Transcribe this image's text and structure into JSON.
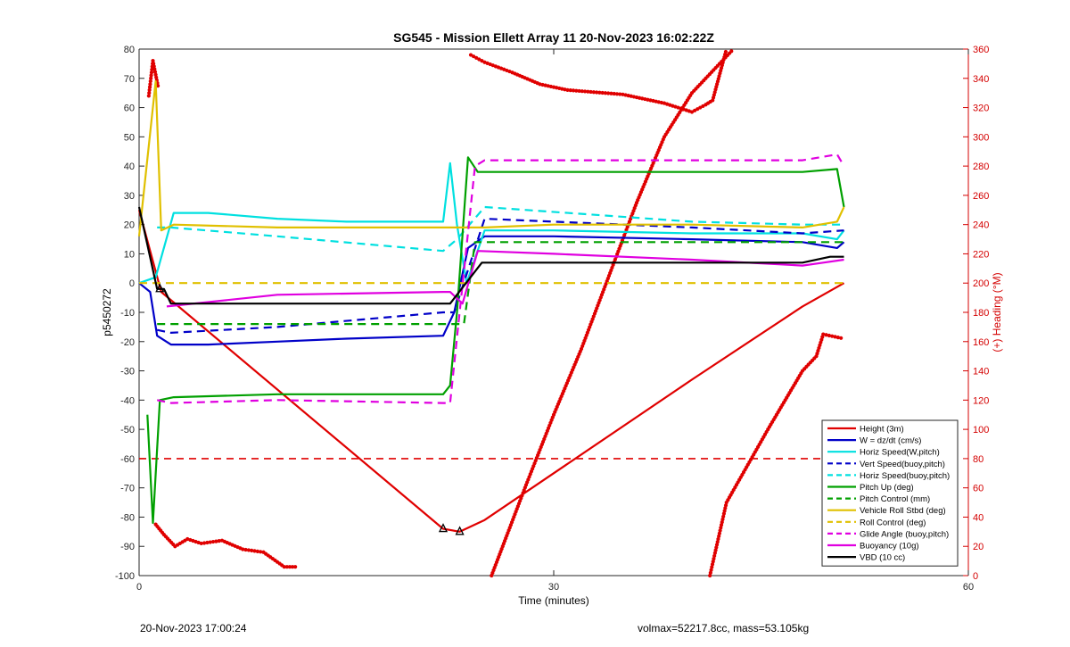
{
  "chart_data": {
    "type": "line",
    "title": "SG545 - Mission Ellett Array 11 20-Nov-2023 16:02:22Z",
    "xlabel": "Time (minutes)",
    "ylabel": "p5450272",
    "y2label": "(+) Heading (°M)",
    "xlim": [
      0,
      60
    ],
    "ylim": [
      -100,
      80
    ],
    "y2lim": [
      0,
      360
    ],
    "xticks": [
      0,
      30,
      60
    ],
    "yticks": [
      -100,
      -90,
      -80,
      -70,
      -60,
      -50,
      -40,
      -30,
      -20,
      -10,
      0,
      10,
      20,
      30,
      40,
      50,
      60,
      70,
      80
    ],
    "y2ticks": [
      0,
      20,
      40,
      60,
      80,
      100,
      120,
      140,
      160,
      180,
      200,
      220,
      240,
      260,
      280,
      300,
      320,
      340,
      360
    ],
    "grid": false,
    "legend_position": "bottom-right",
    "series": [
      {
        "name": "Height (3m)",
        "color": "#e00000",
        "style": "solid",
        "x": [
          0,
          1.6,
          22,
          23.2,
          25,
          40,
          48,
          51
        ],
        "y": [
          25,
          -3,
          -84,
          -85,
          -81,
          -33,
          -8,
          0
        ]
      },
      {
        "name": "W = dz/dt (cm/s)",
        "color": "#0000c8",
        "style": "solid",
        "x": [
          0,
          0.8,
          1.3,
          2.3,
          5,
          10,
          15,
          22,
          22.8,
          23.8,
          25,
          30,
          40,
          48,
          50.5,
          51
        ],
        "y": [
          0,
          -3,
          -18,
          -21,
          -21,
          -20,
          -19,
          -18,
          -10,
          12,
          16,
          16,
          15,
          14,
          12,
          14
        ]
      },
      {
        "name": "Horiz Speed(W,pitch)",
        "color": "#00e0e0",
        "style": "solid",
        "x": [
          0,
          1.2,
          2.5,
          5,
          10,
          15,
          22,
          22.5,
          23,
          23.7,
          25,
          30,
          40,
          48,
          50.5,
          51
        ],
        "y": [
          0,
          2,
          24,
          24,
          22,
          21,
          21,
          41,
          20,
          0,
          18,
          18,
          17,
          17,
          15,
          18
        ]
      },
      {
        "name": "Vert Speed(buoy,pitch)",
        "color": "#0000c8",
        "style": "dashed",
        "x": [
          1.3,
          2.3,
          10,
          22,
          22.8,
          25,
          30,
          40,
          48,
          51
        ],
        "y": [
          -16,
          -17,
          -15,
          -10,
          -10,
          22,
          21,
          19,
          17,
          18
        ]
      },
      {
        "name": "Horiz Speed(buoy,pitch)",
        "color": "#00e0e0",
        "style": "dashed",
        "x": [
          1.3,
          2.3,
          10,
          22,
          23,
          25,
          40,
          48,
          51
        ],
        "y": [
          19,
          19,
          16,
          11,
          15,
          26,
          21,
          20,
          20
        ]
      },
      {
        "name": "Pitch Up (deg)",
        "color": "#00a000",
        "style": "solid",
        "x": [
          0.6,
          1.0,
          1.5,
          2.5,
          10,
          22,
          22.5,
          23.0,
          23.8,
          24.5,
          30,
          40,
          48,
          50.5,
          51
        ],
        "y": [
          -45,
          -82,
          -40,
          -39,
          -38,
          -38,
          -35,
          -10,
          43,
          38,
          38,
          38,
          38,
          39,
          26
        ]
      },
      {
        "name": "Pitch Control (mm)",
        "color": "#00a000",
        "style": "dashed",
        "x": [
          1.3,
          2.3,
          22,
          23.5,
          24.3,
          51
        ],
        "y": [
          -14,
          -14,
          -14,
          -14,
          14,
          14
        ]
      },
      {
        "name": "Vehicle Roll Stbd (deg)",
        "color": "#e0c000",
        "style": "solid",
        "x": [
          0,
          1.2,
          1.6,
          2.5,
          10,
          22,
          25,
          30,
          40,
          48,
          50.5,
          51
        ],
        "y": [
          16,
          69,
          18,
          20,
          19,
          19,
          19,
          20,
          20,
          19,
          21,
          26
        ]
      },
      {
        "name": "Roll Control (deg)",
        "color": "#e0c000",
        "style": "dashed",
        "x": [
          0,
          51
        ],
        "y": [
          0,
          0
        ]
      },
      {
        "name": "Glide Angle (buoy,pitch)",
        "color": "#e000e0",
        "style": "dashed",
        "x": [
          1.3,
          2.3,
          10,
          22,
          22.5,
          24.3,
          25,
          40,
          48,
          50.5,
          51
        ],
        "y": [
          -40,
          -41,
          -40,
          -41,
          -41,
          40,
          42,
          42,
          42,
          44,
          40
        ]
      },
      {
        "name": "Buoyancy (10g)",
        "color": "#e000e0",
        "style": "solid",
        "x": [
          2,
          10,
          22,
          22.5,
          23.4,
          24.5,
          30,
          40,
          48,
          49.5,
          51
        ],
        "y": [
          -8,
          -4,
          -3,
          -3,
          -7,
          11,
          10,
          8,
          6,
          7,
          8
        ]
      },
      {
        "name": "VBD (10 cc)",
        "color": "#000000",
        "style": "solid",
        "x": [
          0,
          1.3,
          1.8,
          2.3,
          22,
          22.5,
          24.8,
          40,
          48,
          50,
          51
        ],
        "y": [
          26,
          -2,
          -2,
          -7,
          -7,
          -7,
          7,
          7,
          7,
          9,
          9
        ]
      }
    ],
    "reference_line": {
      "name": "Height (3m)",
      "y": -60,
      "color": "#e00000",
      "style": "dashed"
    },
    "heading_series": {
      "name": "Heading",
      "axis": "right",
      "color": "#e00000",
      "segments": [
        {
          "x": [
            0.7,
            1.0,
            1.4
          ],
          "y": [
            328,
            352,
            333
          ]
        },
        {
          "x": [
            1.2,
            1.8,
            2.6,
            3.5,
            4.5,
            6,
            7.5,
            9,
            10.5,
            11.5
          ],
          "y": [
            35,
            28,
            20,
            25,
            22,
            24,
            18,
            16,
            6,
            6
          ]
        },
        {
          "x": [
            24,
            25,
            27,
            29,
            31,
            35,
            38,
            40,
            41
          ],
          "y": [
            356,
            351,
            344,
            336,
            332,
            329,
            323,
            317,
            322
          ]
        },
        {
          "x": [
            41,
            41.5,
            42.5
          ],
          "y": [
            322,
            325,
            360
          ]
        },
        {
          "x": [
            25.5,
            28,
            30,
            32,
            34,
            36,
            38,
            40,
            43
          ],
          "y": [
            0,
            62,
            110,
            155,
            205,
            255,
            300,
            330,
            360
          ]
        },
        {
          "x": [
            41.3,
            42.5,
            45.5,
            48,
            49,
            49.5,
            51
          ],
          "y": [
            0,
            50,
            100,
            140,
            150,
            165,
            162
          ]
        }
      ]
    },
    "markers": [
      {
        "x": 1.5,
        "y": -2,
        "shape": "triangle"
      },
      {
        "x": 22,
        "y": -84,
        "shape": "triangle"
      },
      {
        "x": 23.2,
        "y": -85,
        "shape": "triangle"
      }
    ]
  },
  "footer": {
    "left": "20-Nov-2023 17:00:24",
    "right": "volmax=52217.8cc, mass=53.105kg"
  }
}
